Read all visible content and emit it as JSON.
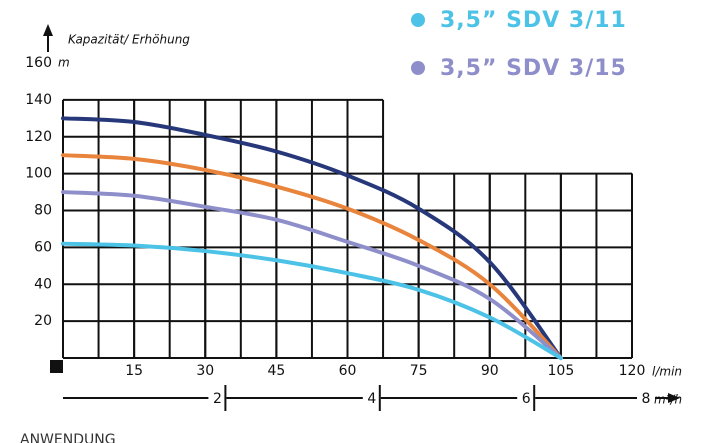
{
  "chart_data": {
    "type": "line",
    "y_label": "Kapazität/ Erhöhung",
    "y_unit": "m",
    "x_unit": "l/min",
    "x2_unit": "m³/h",
    "x": [
      0,
      15,
      30,
      45,
      60,
      75,
      90,
      105
    ],
    "series": [
      {
        "color": "#27387a",
        "values": [
          130,
          128,
          121,
          112,
          99,
          81,
          52,
          0
        ]
      },
      {
        "color": "#e8843c",
        "values": [
          110,
          108,
          102,
          93,
          81,
          64,
          40,
          0
        ]
      },
      {
        "name": "3,5” SDV 3/15",
        "color": "#8e8ecb",
        "values": [
          90,
          88,
          82,
          75,
          63,
          50,
          32,
          0
        ]
      },
      {
        "name": "3,5” SDV 3/11",
        "color": "#4dc2e7",
        "values": [
          62,
          61,
          58,
          53,
          46,
          37,
          22,
          0
        ]
      }
    ],
    "xlim": [
      0,
      120
    ],
    "xticks": [
      15,
      30,
      45,
      60,
      75,
      90,
      105,
      120
    ],
    "ylim": [
      0,
      160
    ],
    "yticks": [
      20,
      40,
      60,
      80,
      100,
      120,
      140,
      160
    ],
    "x2ticks": [
      2,
      4,
      6,
      8
    ],
    "grid": true,
    "footer": "ANWENDUNG"
  }
}
